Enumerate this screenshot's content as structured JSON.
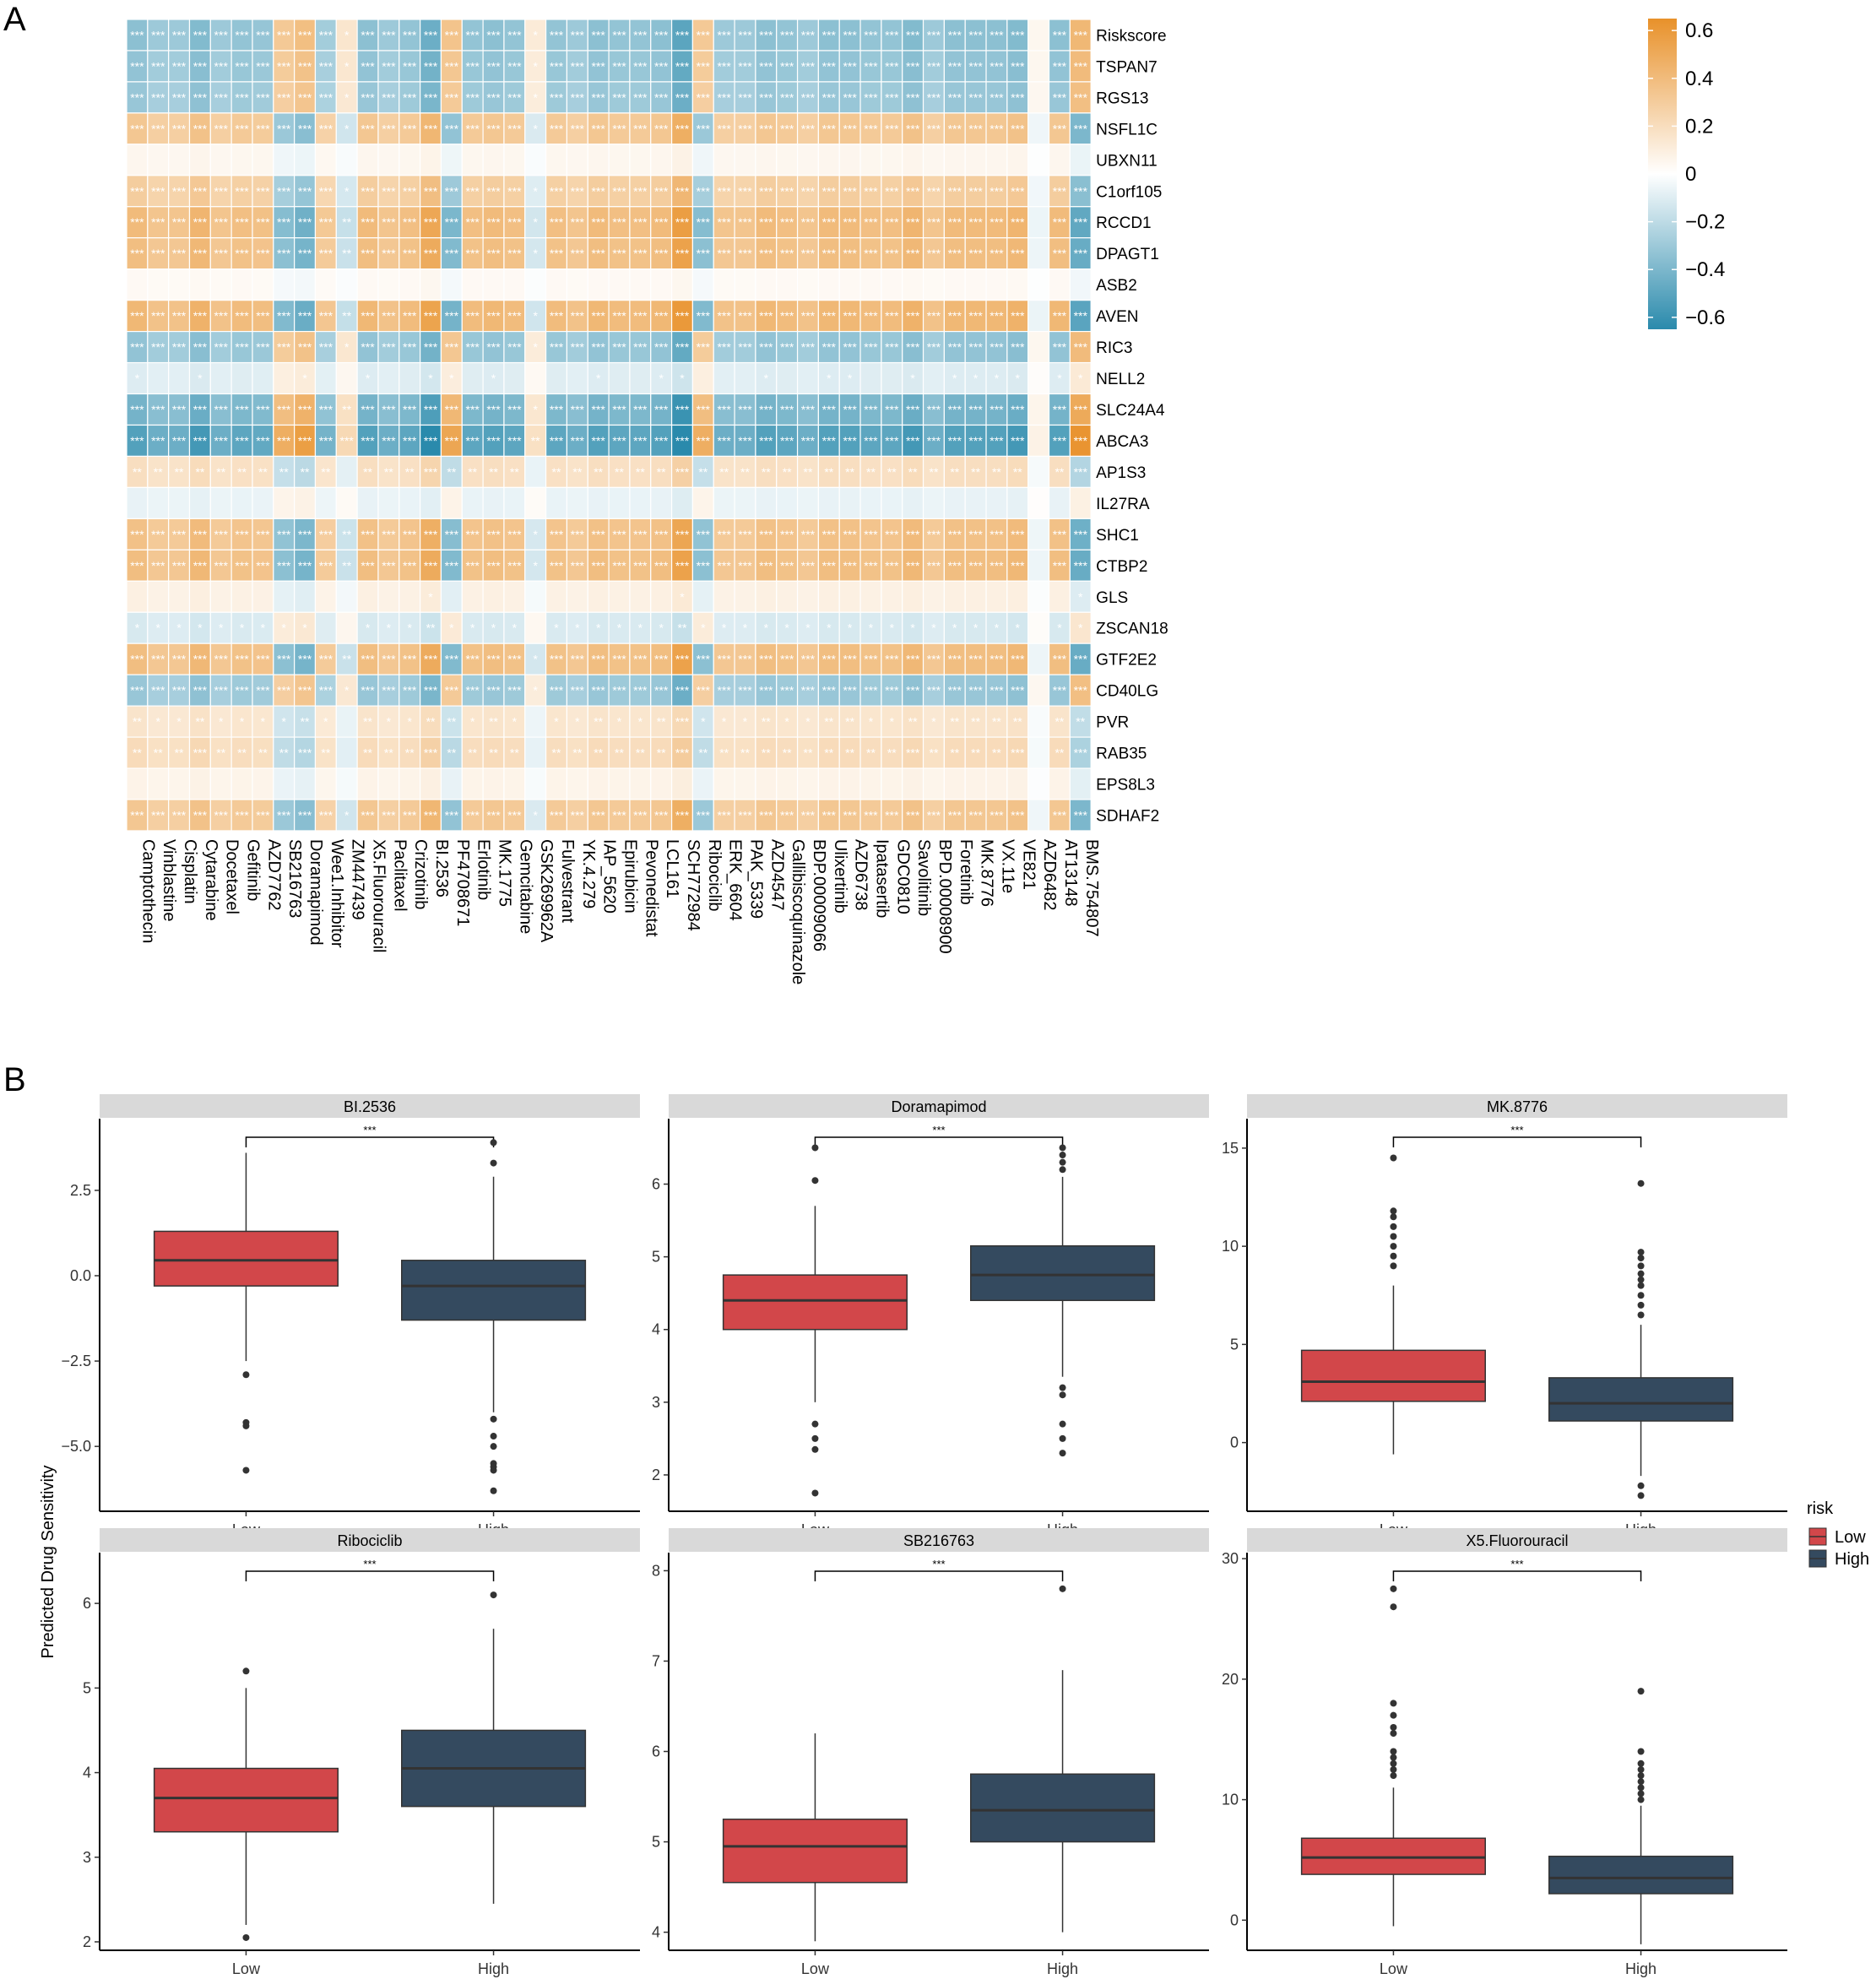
{
  "panel_a": {
    "label": "A"
  },
  "panel_b": {
    "label": "B"
  },
  "colors": {
    "positive": "#E8912A",
    "negative": "#2A8AAC",
    "mid": "#FFFFFF",
    "low": "#D2474A",
    "high": "#344A5F"
  },
  "chart_data": [
    {
      "type": "heatmap",
      "title": "",
      "colorbar": {
        "ticks": [
          0.6,
          0.4,
          0.2,
          0,
          -0.2,
          -0.4,
          -0.6
        ],
        "tick_labels": [
          "0.6",
          "0.4",
          "0.2",
          "0",
          "−0.2",
          "−0.4",
          "−0.6"
        ],
        "range": [
          -0.65,
          0.65
        ]
      },
      "rows": [
        "Riskscore",
        "TSPAN7",
        "RGS13",
        "NSFL1C",
        "UBXN11",
        "C1orf105",
        "RCCD1",
        "DPAGT1",
        "ASB2",
        "AVEN",
        "RIC3",
        "NELL2",
        "SLC24A4",
        "ABCA3",
        "AP1S3",
        "IL27RA",
        "SHC1",
        "CTBP2",
        "GLS",
        "ZSCAN18",
        "GTF2E2",
        "CD40LG",
        "PVR",
        "RAB35",
        "EPS8L3",
        "SDHAF2"
      ],
      "columns": [
        "Camptothecin",
        "Vinblastine",
        "Cisplatin",
        "Cytarabine",
        "Docetaxel",
        "Gefitinib",
        "AZD7762",
        "SB216763",
        "Doramapimod",
        "Wee1.Inhibitor",
        "ZM447439",
        "X5.Fluorouracil",
        "Paclitaxel",
        "Crizotinib",
        "BI.2536",
        "PF4708671",
        "Erlotinib",
        "MK.1775",
        "Gemcitabine",
        "GSK269962A",
        "Fulvestrant",
        "YK.4.279",
        "IAP_5620",
        "Epirubicin",
        "Pevonedistat",
        "LCL161",
        "SCH772984",
        "Ribociclib",
        "ERK_6604",
        "PAK_5339",
        "AZD4547",
        "Gallibiscoquinazole",
        "BDP.00009066",
        "Ulixertinib",
        "AZD6738",
        "Ipatasertib",
        "GDC0810",
        "Savolitinib",
        "BPD.00008900",
        "Foretinib",
        "MK.8776",
        "VX.11e",
        "VE821",
        "AZD6482",
        "AT13148",
        "BMS.754807"
      ],
      "profile": [
        -0.35,
        -0.3,
        -0.3,
        -0.38,
        -0.3,
        -0.33,
        -0.32,
        0.32,
        0.38,
        -0.28,
        0.15,
        -0.35,
        -0.3,
        -0.33,
        -0.45,
        0.35,
        -0.33,
        -0.35,
        -0.33,
        0.12,
        -0.33,
        -0.3,
        -0.35,
        -0.33,
        -0.33,
        -0.35,
        -0.5,
        0.32,
        -0.3,
        -0.3,
        -0.35,
        -0.33,
        -0.3,
        -0.35,
        -0.35,
        -0.33,
        -0.33,
        -0.38,
        -0.3,
        -0.35,
        -0.35,
        -0.35,
        -0.38,
        0.05,
        -0.35,
        0.42
      ],
      "row_scale": [
        1.0,
        0.95,
        0.9,
        -0.95,
        -0.15,
        -0.85,
        -1.15,
        -1.1,
        -0.1,
        -1.2,
        0.95,
        0.3,
        1.2,
        1.5,
        -0.55,
        0.2,
        -1.05,
        -1.1,
        -0.25,
        0.35,
        -1.1,
        0.9,
        -0.45,
        -0.6,
        -0.2,
        -0.95
      ]
    },
    {
      "type": "box",
      "ylabel": "Predicted Drug Sensitivity",
      "categories": [
        "Low",
        "High"
      ],
      "significance": "***",
      "legend": {
        "title": "risk",
        "entries": [
          "Low",
          "High"
        ],
        "placement": "right"
      },
      "panels": [
        {
          "title": "BI.2536",
          "yticks": [
            2.5,
            0.0,
            -2.5,
            -5.0
          ],
          "ytick_labels": [
            "2.5",
            "0.0",
            "−2.5",
            "−5.0"
          ],
          "ylim": [
            -6.9,
            4.6
          ],
          "boxes": [
            {
              "group": "Low",
              "q1": -0.3,
              "median": 0.45,
              "q3": 1.3,
              "whisker_low": -2.5,
              "whisker_high": 3.6,
              "outliers": [
                -2.9,
                -4.3,
                -4.4,
                -5.7
              ]
            },
            {
              "group": "High",
              "q1": -1.3,
              "median": -0.3,
              "q3": 0.45,
              "whisker_low": -4.0,
              "whisker_high": 2.9,
              "outliers": [
                -4.2,
                -4.7,
                -5.0,
                -5.5,
                -5.6,
                -5.7,
                -6.3,
                3.3,
                3.9
              ]
            }
          ]
        },
        {
          "title": "Doramapimod",
          "yticks": [
            6,
            5,
            4,
            3,
            2
          ],
          "ytick_labels": [
            "6",
            "5",
            "4",
            "3",
            "2"
          ],
          "ylim": [
            1.5,
            6.9
          ],
          "boxes": [
            {
              "group": "Low",
              "q1": 4.0,
              "median": 4.4,
              "q3": 4.75,
              "whisker_low": 3.0,
              "whisker_high": 5.7,
              "outliers": [
                6.05,
                6.5,
                2.7,
                2.5,
                2.35,
                1.75
              ]
            },
            {
              "group": "High",
              "q1": 4.4,
              "median": 4.75,
              "q3": 5.15,
              "whisker_low": 3.35,
              "whisker_high": 6.1,
              "outliers": [
                6.2,
                6.3,
                6.4,
                6.5,
                3.2,
                3.1,
                2.7,
                2.5,
                2.3
              ]
            }
          ]
        },
        {
          "title": "MK.8776",
          "yticks": [
            15,
            10,
            5,
            0
          ],
          "ytick_labels": [
            "15",
            "10",
            "5",
            "0"
          ],
          "ylim": [
            -3.5,
            16.5
          ],
          "boxes": [
            {
              "group": "Low",
              "q1": 2.1,
              "median": 3.1,
              "q3": 4.7,
              "whisker_low": -0.6,
              "whisker_high": 8.0,
              "outliers": [
                9.0,
                9.5,
                10.0,
                10.5,
                11.0,
                11.5,
                11.8,
                14.5
              ]
            },
            {
              "group": "High",
              "q1": 1.1,
              "median": 2.0,
              "q3": 3.3,
              "whisker_low": -1.7,
              "whisker_high": 6.0,
              "outliers": [
                6.5,
                7.0,
                7.5,
                8.0,
                8.3,
                8.6,
                9.0,
                9.4,
                9.7,
                13.2,
                -2.2,
                -2.7
              ]
            }
          ]
        },
        {
          "title": "Ribociclib",
          "yticks": [
            6,
            5,
            4,
            3,
            2
          ],
          "ytick_labels": [
            "6",
            "5",
            "4",
            "3",
            "2"
          ],
          "ylim": [
            1.9,
            6.6
          ],
          "boxes": [
            {
              "group": "Low",
              "q1": 3.3,
              "median": 3.7,
              "q3": 4.05,
              "whisker_low": 2.2,
              "whisker_high": 5.0,
              "outliers": [
                5.2,
                2.05
              ]
            },
            {
              "group": "High",
              "q1": 3.6,
              "median": 4.05,
              "q3": 4.5,
              "whisker_low": 2.45,
              "whisker_high": 5.7,
              "outliers": [
                6.1
              ]
            }
          ]
        },
        {
          "title": "SB216763",
          "yticks": [
            8,
            7,
            6,
            5,
            4
          ],
          "ytick_labels": [
            "8",
            "7",
            "6",
            "5",
            "4"
          ],
          "ylim": [
            3.8,
            8.2
          ],
          "boxes": [
            {
              "group": "Low",
              "q1": 4.55,
              "median": 4.95,
              "q3": 5.25,
              "whisker_low": 3.9,
              "whisker_high": 6.2,
              "outliers": []
            },
            {
              "group": "High",
              "q1": 5.0,
              "median": 5.35,
              "q3": 5.75,
              "whisker_low": 4.0,
              "whisker_high": 6.9,
              "outliers": [
                7.8
              ]
            }
          ]
        },
        {
          "title": "X5.Fluorouracil",
          "yticks": [
            30,
            20,
            10,
            0
          ],
          "ytick_labels": [
            "30",
            "20",
            "10",
            "0"
          ],
          "ylim": [
            -2.5,
            30.5
          ],
          "boxes": [
            {
              "group": "Low",
              "q1": 3.8,
              "median": 5.2,
              "q3": 6.8,
              "whisker_low": -0.5,
              "whisker_high": 11.0,
              "outliers": [
                12.0,
                12.5,
                13.0,
                13.5,
                14.0,
                15.5,
                16.0,
                17.0,
                18.0,
                26.0,
                27.5
              ]
            },
            {
              "group": "High",
              "q1": 2.2,
              "median": 3.5,
              "q3": 5.3,
              "whisker_low": -2.0,
              "whisker_high": 9.5,
              "outliers": [
                10.0,
                10.5,
                11.0,
                11.5,
                12.0,
                12.5,
                13.0,
                14.0,
                19.0
              ]
            }
          ]
        }
      ]
    }
  ]
}
